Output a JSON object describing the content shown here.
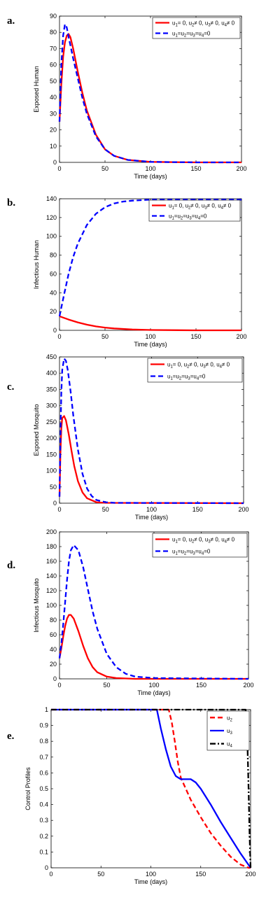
{
  "panel_letters": [
    "a.",
    "b.",
    "c.",
    "d.",
    "e."
  ],
  "colors": {
    "red": "#ff0000",
    "blue": "#0000ff",
    "black": "#000000"
  },
  "chart_data": [
    {
      "type": "line",
      "ylabel": "Exposed Human",
      "xlabel": "Time (days)",
      "xlim": [
        0,
        200
      ],
      "ylim": [
        0,
        90
      ],
      "xticks": [
        0,
        50,
        100,
        150,
        200
      ],
      "yticks": [
        0,
        10,
        20,
        30,
        40,
        50,
        60,
        70,
        80,
        90
      ],
      "legend_position": "top-right",
      "series": [
        {
          "name": "u1= 0, u2≠ 0, u3≠ 0, u4≠ 0",
          "legend": {
            "main": "u",
            "parts": [
              [
                "1",
                "= 0, u"
              ],
              [
                "2",
                "≠ 0, u"
              ],
              [
                "3",
                "≠ 0, u"
              ],
              [
                "4",
                "≠ 0"
              ]
            ]
          },
          "color": "#ff0000",
          "dash": "solid",
          "x": [
            0,
            2,
            4,
            6,
            8,
            10,
            12,
            15,
            20,
            25,
            30,
            40,
            50,
            60,
            75,
            100,
            150,
            200
          ],
          "y": [
            25,
            48,
            65,
            74,
            78,
            79,
            77,
            70,
            56,
            43,
            32,
            17,
            8,
            4,
            1.5,
            0.3,
            0,
            0
          ]
        },
        {
          "name": "u1=u2=u3=u4=0",
          "legend": {
            "main": "u",
            "parts": [
              [
                "1",
                "=u"
              ],
              [
                "2",
                "=u"
              ],
              [
                "3",
                "=u"
              ],
              [
                "4",
                "=0"
              ]
            ]
          },
          "color": "#0000ff",
          "dash": "dashed",
          "x": [
            0,
            2,
            4,
            6,
            8,
            10,
            12,
            15,
            20,
            25,
            30,
            40,
            50,
            60,
            75,
            100,
            150,
            200
          ],
          "y": [
            25,
            60,
            78,
            85,
            83,
            77,
            72,
            64,
            52,
            40,
            30,
            16,
            8,
            4,
            1.5,
            0.3,
            0,
            0
          ]
        }
      ]
    },
    {
      "type": "line",
      "ylabel": "Infectious Human",
      "xlabel": "Time (days)",
      "xlim": [
        0,
        200
      ],
      "ylim": [
        0,
        140
      ],
      "xticks": [
        0,
        50,
        100,
        150,
        200
      ],
      "yticks": [
        0,
        20,
        40,
        60,
        80,
        100,
        120,
        140
      ],
      "legend_position": "top-right",
      "series": [
        {
          "name": "u1= 0, u2≠ 0, u3≠ 0, u4≠ 0",
          "legend": {
            "main": "u",
            "parts": [
              [
                "1",
                "= 0, u"
              ],
              [
                "2",
                "≠ 0, u"
              ],
              [
                "3",
                "≠ 0, u"
              ],
              [
                "4",
                "≠ 0"
              ]
            ]
          },
          "color": "#ff0000",
          "dash": "solid",
          "x": [
            0,
            10,
            20,
            30,
            40,
            50,
            60,
            80,
            100,
            150,
            200
          ],
          "y": [
            15,
            11.5,
            8.5,
            6,
            4.2,
            2.9,
            2,
            0.9,
            0.4,
            0,
            0
          ]
        },
        {
          "name": "u1=u2=u3=u4=0",
          "legend": {
            "main": "u",
            "parts": [
              [
                "1",
                "=u"
              ],
              [
                "2",
                "=u"
              ],
              [
                "3",
                "=u"
              ],
              [
                "4",
                "=0"
              ]
            ]
          },
          "color": "#0000ff",
          "dash": "dashed",
          "x": [
            0,
            5,
            10,
            15,
            20,
            30,
            40,
            50,
            60,
            70,
            80,
            100,
            120,
            150,
            200
          ],
          "y": [
            15,
            38,
            60,
            78,
            92,
            112,
            124,
            131,
            135,
            137,
            138,
            139,
            139,
            139,
            139
          ]
        }
      ]
    },
    {
      "type": "line",
      "ylabel": "Exposed Mosquito",
      "xlabel": "Time (days)",
      "xlim": [
        0,
        200
      ],
      "ylim": [
        0,
        450
      ],
      "xticks": [
        0,
        50,
        100,
        150,
        200
      ],
      "yticks": [
        0,
        50,
        100,
        150,
        200,
        250,
        300,
        350,
        400,
        450
      ],
      "legend_position": "top-right",
      "series": [
        {
          "name": "u1= 0, u2≠ 0, u3≠ 0, u4≠ 0",
          "legend": {
            "main": "u",
            "parts": [
              [
                "1",
                "= 0, u"
              ],
              [
                "2",
                "≠ 0, u"
              ],
              [
                "3",
                "≠ 0, u"
              ],
              [
                "4",
                "≠ 0"
              ]
            ]
          },
          "color": "#ff0000",
          "dash": "solid",
          "x": [
            0,
            1,
            2,
            3,
            5,
            7,
            10,
            13,
            16,
            20,
            25,
            30,
            40,
            50,
            200
          ],
          "y": [
            20,
            150,
            230,
            262,
            268,
            255,
            212,
            162,
            115,
            68,
            33,
            15,
            3,
            1,
            0
          ]
        },
        {
          "name": "u1=u2=u3=u4=0",
          "legend": {
            "main": "u",
            "parts": [
              [
                "1",
                "=u"
              ],
              [
                "2",
                "=u"
              ],
              [
                "3",
                "=u"
              ],
              [
                "4",
                "=0"
              ]
            ]
          },
          "color": "#0000ff",
          "dash": "dashed",
          "x": [
            0,
            1,
            2,
            3,
            5,
            7,
            9,
            12,
            15,
            20,
            25,
            30,
            35,
            40,
            50,
            60,
            200
          ],
          "y": [
            20,
            200,
            340,
            410,
            445,
            438,
            410,
            345,
            270,
            165,
            90,
            45,
            22,
            10,
            3,
            1,
            0
          ]
        }
      ]
    },
    {
      "type": "line",
      "ylabel": "Infectious Mosquito",
      "xlabel": "Time (days)",
      "xlim": [
        0,
        200
      ],
      "ylim": [
        0,
        200
      ],
      "xticks": [
        0,
        50,
        100,
        150,
        200
      ],
      "yticks": [
        0,
        20,
        40,
        60,
        80,
        100,
        120,
        140,
        160,
        180,
        200
      ],
      "legend_position": "top-right",
      "series": [
        {
          "name": "u1= 0, u2≠ 0, u3≠ 0, u4≠ 0",
          "legend": {
            "main": "u",
            "parts": [
              [
                "1",
                "= 0, u"
              ],
              [
                "2",
                "≠ 0, u"
              ],
              [
                "3",
                "≠ 0, u"
              ],
              [
                "4",
                "≠ 0"
              ]
            ]
          },
          "color": "#ff0000",
          "dash": "solid",
          "x": [
            0,
            2,
            4,
            6,
            8,
            10,
            12,
            15,
            20,
            25,
            30,
            35,
            40,
            50,
            60,
            80,
            200
          ],
          "y": [
            28,
            42,
            58,
            72,
            82,
            87,
            87,
            82,
            65,
            45,
            28,
            16,
            9,
            3,
            1,
            0,
            0
          ]
        },
        {
          "name": "u1=u2=u3=u4=0",
          "legend": {
            "main": "u",
            "parts": [
              [
                "1",
                "=u"
              ],
              [
                "2",
                "=u"
              ],
              [
                "3",
                "=u"
              ],
              [
                "4",
                "=0"
              ]
            ]
          },
          "color": "#0000ff",
          "dash": "dashed",
          "x": [
            0,
            2,
            4,
            6,
            8,
            10,
            12,
            15,
            20,
            25,
            30,
            35,
            40,
            50,
            60,
            70,
            80,
            100,
            200
          ],
          "y": [
            28,
            48,
            75,
            105,
            135,
            160,
            175,
            182,
            175,
            152,
            122,
            92,
            68,
            34,
            16,
            7,
            3,
            1,
            0
          ]
        }
      ]
    },
    {
      "type": "line",
      "ylabel": "Control Profiles",
      "xlabel": "Time (days)",
      "xlim": [
        0,
        200
      ],
      "ylim": [
        0,
        1
      ],
      "xticks": [
        0,
        50,
        100,
        150,
        200
      ],
      "yticks": [
        0,
        0.1,
        0.2,
        0.3,
        0.4,
        0.5,
        0.6,
        0.7,
        0.8,
        0.9,
        1
      ],
      "legend_position": "top-right",
      "series": [
        {
          "name": "u2",
          "legend": {
            "main": "u",
            "parts": [
              [
                "2",
                ""
              ]
            ]
          },
          "color": "#ff0000",
          "dash": "dashed",
          "x": [
            0,
            118,
            121,
            124,
            127,
            130,
            135,
            140,
            150,
            160,
            170,
            180,
            190,
            198,
            200
          ],
          "y": [
            1,
            1,
            0.92,
            0.8,
            0.67,
            0.57,
            0.5,
            0.43,
            0.32,
            0.22,
            0.14,
            0.07,
            0.02,
            0,
            0
          ]
        },
        {
          "name": "u3",
          "legend": {
            "main": "u",
            "parts": [
              [
                "3",
                ""
              ]
            ]
          },
          "color": "#0000ff",
          "dash": "solid",
          "x": [
            0,
            106,
            110,
            115,
            120,
            125,
            130,
            135,
            140,
            145,
            150,
            160,
            170,
            180,
            190,
            200
          ],
          "y": [
            1,
            1,
            0.88,
            0.75,
            0.64,
            0.58,
            0.56,
            0.56,
            0.56,
            0.54,
            0.5,
            0.4,
            0.29,
            0.19,
            0.09,
            0
          ]
        },
        {
          "name": "u4",
          "legend": {
            "main": "u",
            "parts": [
              [
                "4",
                ""
              ]
            ]
          },
          "color": "#000000",
          "dash": "dashdot",
          "x": [
            0,
            195,
            196,
            197,
            198,
            199,
            200
          ],
          "y": [
            1,
            1,
            0.92,
            0.75,
            0.5,
            0.2,
            0
          ]
        }
      ]
    }
  ]
}
